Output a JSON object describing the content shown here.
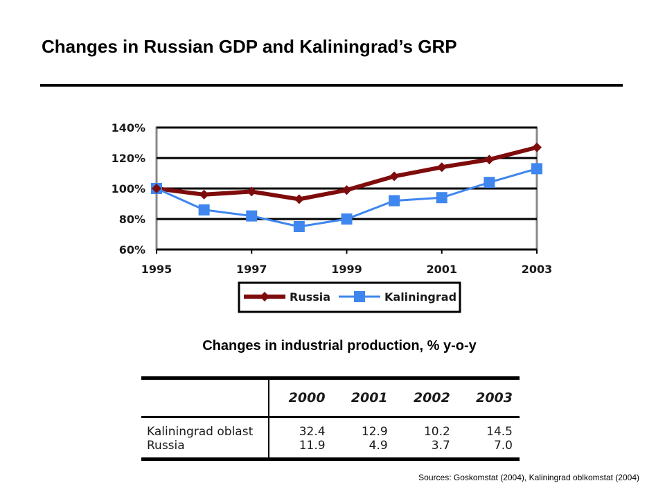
{
  "slide": {
    "title": "Changes in Russian GDP and Kaliningrad’s GRP"
  },
  "chart_data": {
    "type": "line",
    "title": "",
    "xlabel": "",
    "ylabel": "",
    "x": [
      1995,
      1996,
      1997,
      1998,
      1999,
      2000,
      2001,
      2002,
      2003
    ],
    "x_tick_labels": [
      "1995",
      "1997",
      "1999",
      "2001",
      "2003"
    ],
    "x_ticks": [
      1995,
      1997,
      1999,
      2001,
      2003
    ],
    "xlim": [
      1995,
      2003
    ],
    "ylim": [
      60,
      140
    ],
    "y_ticks": [
      60,
      80,
      100,
      120,
      140
    ],
    "y_tick_labels": [
      "60%",
      "80%",
      "100%",
      "120%",
      "140%"
    ],
    "grid": true,
    "legend_position": "bottom",
    "series": [
      {
        "name": "Russia",
        "color": "#7f0c0c",
        "marker": "diamond",
        "values": [
          100,
          96,
          98,
          93,
          99,
          108,
          114,
          119,
          127
        ]
      },
      {
        "name": "Kaliningrad",
        "color": "#3f86ee",
        "marker": "square",
        "values": [
          100,
          86,
          82,
          75,
          80,
          92,
          94,
          104,
          113
        ]
      }
    ]
  },
  "table": {
    "caption": "Changes in industrial production, % y-o-y",
    "years": [
      "2000",
      "2001",
      "2002",
      "2003"
    ],
    "rows": [
      {
        "label": "Kaliningrad oblast",
        "values": [
          "32.4",
          "12.9",
          "10.2",
          "14.5"
        ]
      },
      {
        "label": "Russia",
        "values": [
          "11.9",
          "4.9",
          "3.7",
          "7.0"
        ]
      }
    ]
  },
  "sources": "Sources: Goskomstat (2004), Kaliningrad oblkomstat (2004)"
}
